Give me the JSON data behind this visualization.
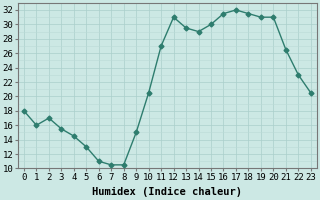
{
  "x": [
    0,
    1,
    2,
    3,
    4,
    5,
    6,
    7,
    8,
    9,
    10,
    11,
    12,
    13,
    14,
    15,
    16,
    17,
    18,
    19,
    20,
    21,
    22,
    23
  ],
  "y": [
    18,
    16,
    17,
    15.5,
    14.5,
    13,
    11,
    10.5,
    10.5,
    15,
    20.5,
    27,
    31,
    29.5,
    29,
    30,
    31.5,
    32,
    31.5,
    31,
    31,
    26.5,
    23,
    20.5
  ],
  "line_color": "#2e7d6e",
  "marker": "D",
  "marker_size": 2.5,
  "bg_color": "#cce8e4",
  "grid_color_major": "#aacfcb",
  "grid_color_minor": "#bbdbd7",
  "xlabel": "Humidex (Indice chaleur)",
  "xlim": [
    -0.5,
    23.5
  ],
  "ylim": [
    10,
    33
  ],
  "yticks": [
    10,
    12,
    14,
    16,
    18,
    20,
    22,
    24,
    26,
    28,
    30,
    32
  ],
  "xticks": [
    0,
    1,
    2,
    3,
    4,
    5,
    6,
    7,
    8,
    9,
    10,
    11,
    12,
    13,
    14,
    15,
    16,
    17,
    18,
    19,
    20,
    21,
    22,
    23
  ],
  "xlabel_fontsize": 7.5,
  "tick_fontsize": 6.5,
  "linewidth": 1.0
}
